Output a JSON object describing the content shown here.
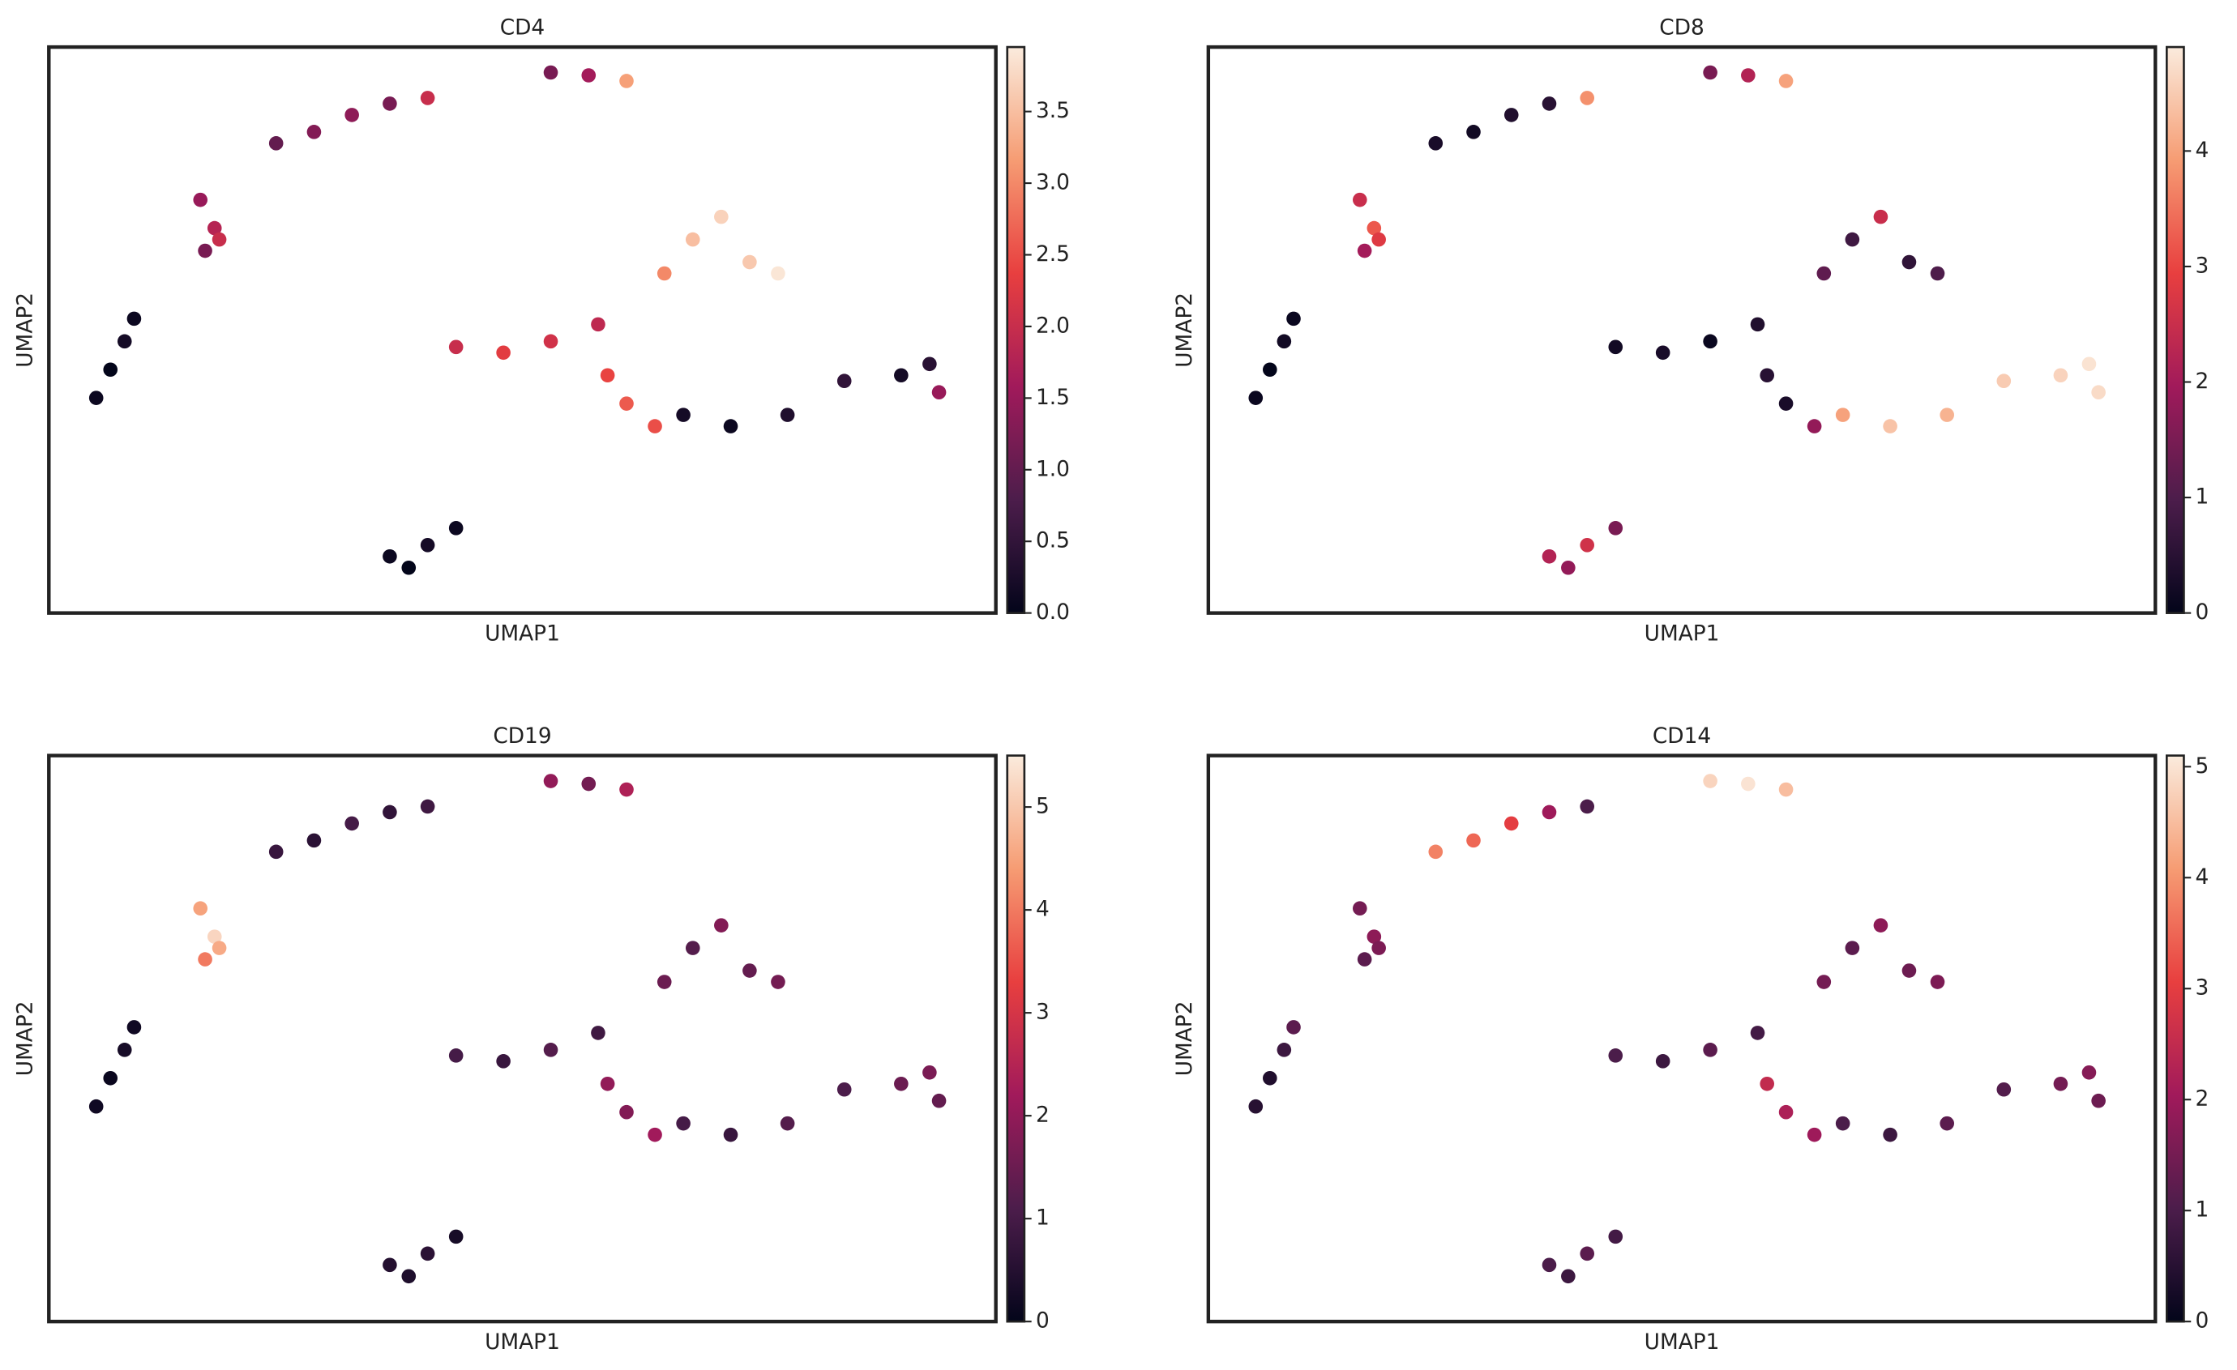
{
  "chart_data": [
    {
      "type": "scatter",
      "title": "CD4",
      "xlabel": "UMAP1",
      "ylabel": "UMAP2",
      "colormap": "rocket",
      "xlim": [
        0,
        100
      ],
      "ylim": [
        0,
        100
      ],
      "x": [
        5,
        6.5,
        8,
        9,
        16,
        17.5,
        16.5,
        18,
        24,
        28,
        32,
        36,
        40,
        53,
        57,
        61,
        65,
        68,
        71,
        74,
        77,
        43,
        48,
        53,
        58,
        59,
        61,
        64,
        67,
        72,
        78,
        84,
        90,
        93,
        94,
        36,
        38,
        40,
        43
      ],
      "y": [
        38,
        43,
        48,
        52,
        73,
        68,
        64,
        66,
        83,
        85,
        88,
        90,
        91,
        95.5,
        95,
        94,
        60,
        66,
        70,
        62,
        60,
        47,
        46,
        48,
        51,
        42,
        37,
        33,
        35,
        33,
        35,
        41,
        42,
        44,
        39,
        10,
        8,
        12,
        15
      ],
      "values": [
        0.1,
        0,
        0.2,
        0.1,
        1.5,
        1.8,
        1.2,
        2.0,
        1.0,
        1.3,
        1.4,
        1.2,
        2.0,
        1.2,
        1.6,
        3.2,
        3.0,
        3.5,
        3.7,
        3.6,
        3.9,
        2.0,
        2.3,
        2.1,
        1.9,
        2.4,
        2.6,
        2.5,
        0.2,
        0.1,
        0.3,
        0.5,
        0.2,
        0.4,
        1.5,
        0.1,
        0,
        0.2,
        0.1
      ],
      "clim": [
        0,
        3.95
      ],
      "cticks": [
        {
          "value": 0,
          "label": "0.0"
        },
        0.5,
        {
          "value": 1,
          "label": "1.0"
        },
        1.5,
        {
          "value": 2,
          "label": "2.0"
        },
        2.5,
        {
          "value": 3,
          "label": "3.0"
        },
        3.5
      ]
    },
    {
      "type": "scatter",
      "title": "CD8",
      "xlabel": "UMAP1",
      "ylabel": "UMAP2",
      "colormap": "rocket",
      "xlim": [
        0,
        100
      ],
      "ylim": [
        0,
        100
      ],
      "x": [
        5,
        6.5,
        8,
        9,
        16,
        17.5,
        16.5,
        18,
        24,
        28,
        32,
        36,
        40,
        53,
        57,
        61,
        65,
        68,
        71,
        74,
        77,
        43,
        48,
        53,
        58,
        59,
        61,
        64,
        67,
        72,
        78,
        84,
        90,
        93,
        94,
        36,
        38,
        40,
        43
      ],
      "y": [
        38,
        43,
        48,
        52,
        73,
        68,
        64,
        66,
        83,
        85,
        88,
        90,
        91,
        95.5,
        95,
        94,
        60,
        66,
        70,
        62,
        60,
        47,
        46,
        48,
        51,
        42,
        37,
        33,
        35,
        33,
        35,
        41,
        42,
        44,
        39,
        10,
        8,
        12,
        15
      ],
      "values": [
        0.1,
        0,
        0.2,
        0.1,
        2.5,
        3.2,
        2.0,
        2.8,
        0.3,
        0.2,
        0.4,
        0.5,
        3.8,
        1.5,
        2.2,
        4.0,
        1.2,
        0.8,
        2.5,
        0.6,
        1.0,
        0.2,
        0.3,
        0.1,
        0.4,
        0.5,
        0.3,
        1.8,
        4.0,
        4.4,
        4.2,
        4.5,
        4.6,
        4.8,
        4.7,
        2.2,
        1.8,
        2.6,
        1.5
      ],
      "clim": [
        0,
        4.9
      ],
      "cticks": [
        0,
        1,
        2,
        3,
        4
      ]
    },
    {
      "type": "scatter",
      "title": "CD19",
      "xlabel": "UMAP1",
      "ylabel": "UMAP2",
      "colormap": "rocket",
      "xlim": [
        0,
        100
      ],
      "ylim": [
        0,
        100
      ],
      "x": [
        5,
        6.5,
        8,
        9,
        16,
        17.5,
        16.5,
        18,
        24,
        28,
        32,
        36,
        40,
        53,
        57,
        61,
        65,
        68,
        71,
        74,
        77,
        43,
        48,
        53,
        58,
        59,
        61,
        64,
        67,
        72,
        78,
        84,
        90,
        93,
        94,
        36,
        38,
        40,
        43
      ],
      "y": [
        38,
        43,
        48,
        52,
        73,
        68,
        64,
        66,
        83,
        85,
        88,
        90,
        91,
        95.5,
        95,
        94,
        60,
        66,
        70,
        62,
        60,
        47,
        46,
        48,
        51,
        42,
        37,
        33,
        35,
        33,
        35,
        41,
        42,
        44,
        39,
        10,
        8,
        12,
        15
      ],
      "values": [
        0.2,
        0.1,
        0.3,
        0.2,
        4.5,
        5.2,
        4.0,
        4.6,
        0.8,
        0.6,
        1.0,
        0.7,
        0.9,
        2.0,
        1.6,
        2.4,
        1.5,
        1.2,
        1.8,
        1.4,
        1.6,
        1.0,
        0.8,
        1.2,
        0.9,
        2.0,
        1.8,
        2.2,
        1.0,
        0.8,
        1.2,
        1.1,
        1.5,
        1.7,
        1.4,
        0.5,
        0.4,
        0.6,
        0.3
      ],
      "clim": [
        0,
        5.5
      ],
      "cticks": [
        0,
        1,
        2,
        3,
        4,
        5
      ]
    },
    {
      "type": "scatter",
      "title": "CD14",
      "xlabel": "UMAP1",
      "ylabel": "UMAP2",
      "colormap": "rocket",
      "xlim": [
        0,
        100
      ],
      "ylim": [
        0,
        100
      ],
      "x": [
        5,
        6.5,
        8,
        9,
        16,
        17.5,
        16.5,
        18,
        24,
        28,
        32,
        36,
        40,
        53,
        57,
        61,
        65,
        68,
        71,
        74,
        77,
        43,
        48,
        53,
        58,
        59,
        61,
        64,
        67,
        72,
        78,
        84,
        90,
        93,
        94,
        36,
        38,
        40,
        43
      ],
      "y": [
        38,
        43,
        48,
        52,
        73,
        68,
        64,
        66,
        83,
        85,
        88,
        90,
        91,
        95.5,
        95,
        94,
        60,
        66,
        70,
        62,
        60,
        47,
        46,
        48,
        51,
        42,
        37,
        33,
        35,
        33,
        35,
        41,
        42,
        44,
        39,
        10,
        8,
        12,
        15
      ],
      "values": [
        0.5,
        0.4,
        0.8,
        1.2,
        1.5,
        1.8,
        1.2,
        1.6,
        3.8,
        3.5,
        3.0,
        2.0,
        1.0,
        4.8,
        5.0,
        4.5,
        1.5,
        1.2,
        1.8,
        1.4,
        1.6,
        1.0,
        0.8,
        1.2,
        0.9,
        2.5,
        2.2,
        2.0,
        1.0,
        0.8,
        1.2,
        1.1,
        1.5,
        1.7,
        1.4,
        1.0,
        0.8,
        1.2,
        0.9
      ],
      "clim": [
        0,
        5.1
      ],
      "cticks": [
        0,
        1,
        2,
        3,
        4,
        5
      ]
    }
  ]
}
